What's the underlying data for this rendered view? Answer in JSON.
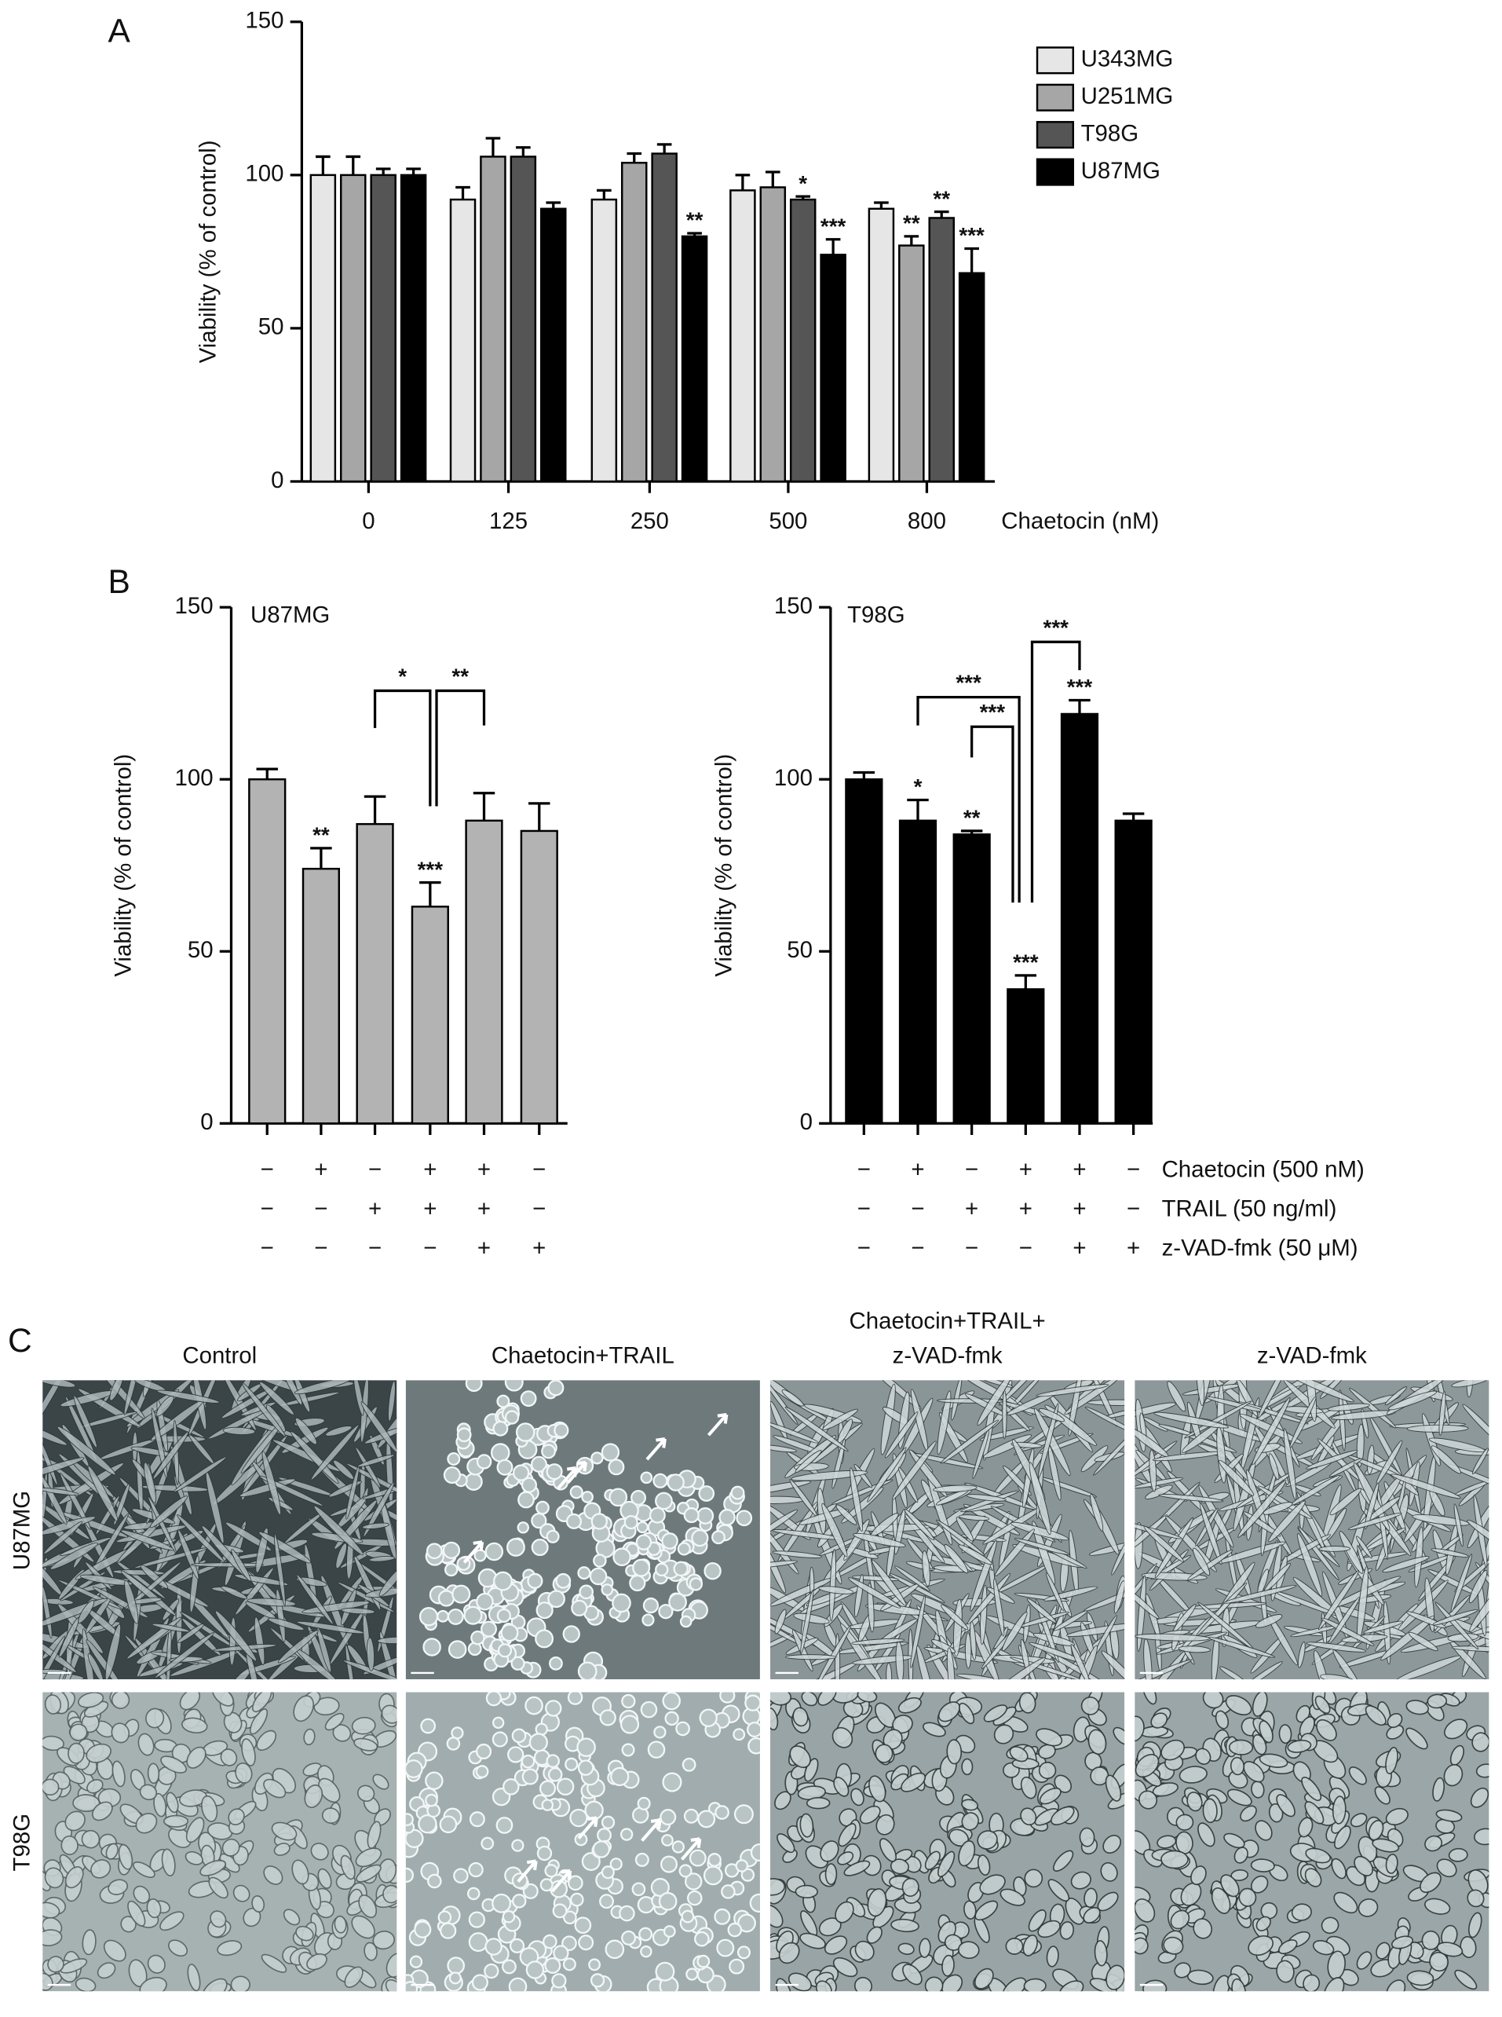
{
  "panel_labels": [
    "A",
    "B",
    "C"
  ],
  "chart_data": [
    {
      "type": "bar",
      "categories": [
        "0",
        "125",
        "250",
        "500",
        "800"
      ],
      "x_label": "Chaetocin (nM)",
      "y_label": "Viability (% of control)",
      "ylim": [
        0,
        150
      ],
      "yticks": [
        0,
        50,
        100,
        150
      ],
      "series": [
        {
          "name": "U343MG",
          "color": "#e6e6e6",
          "values": [
            100,
            92,
            92,
            95,
            89
          ],
          "errors": [
            6,
            4,
            3,
            5,
            2
          ],
          "annotations": [
            null,
            null,
            null,
            null,
            null
          ]
        },
        {
          "name": "U251MG",
          "color": "#a6a6a6",
          "values": [
            100,
            106,
            104,
            96,
            77
          ],
          "errors": [
            6,
            6,
            3,
            5,
            3
          ],
          "annotations": [
            null,
            null,
            null,
            null,
            "**"
          ]
        },
        {
          "name": "T98G",
          "color": "#555555",
          "values": [
            100,
            106,
            107,
            92,
            86
          ],
          "errors": [
            2,
            3,
            3,
            1,
            2
          ],
          "annotations": [
            null,
            null,
            null,
            "*",
            "**"
          ]
        },
        {
          "name": "U87MG",
          "color": "#000000",
          "values": [
            100,
            89,
            80,
            74,
            68
          ],
          "errors": [
            2,
            2,
            1,
            5,
            8
          ],
          "annotations": [
            null,
            null,
            "**",
            "***",
            "***"
          ]
        }
      ]
    },
    {
      "type": "bar",
      "title": "U87MG",
      "y_label": "Viability (% of control)",
      "ylim": [
        0,
        150
      ],
      "yticks": [
        0,
        50,
        100,
        150
      ],
      "color": "#b3b3b3",
      "values": [
        100,
        74,
        87,
        63,
        88,
        85
      ],
      "errors": [
        3,
        6,
        8,
        7,
        8,
        8
      ],
      "annotations": [
        null,
        "**",
        null,
        "***",
        null,
        null
      ],
      "comparisons": [
        "*",
        "**"
      ],
      "conditions": [
        {
          "signs": [
            "−",
            "+",
            "−",
            "+",
            "+",
            "−"
          ]
        },
        {
          "signs": [
            "−",
            "−",
            "+",
            "+",
            "+",
            "−"
          ]
        },
        {
          "signs": [
            "−",
            "−",
            "−",
            "−",
            "+",
            "+"
          ]
        }
      ]
    },
    {
      "type": "bar",
      "title": "T98G",
      "y_label": "Viability (% of control)",
      "ylim": [
        0,
        150
      ],
      "yticks": [
        0,
        50,
        100,
        150
      ],
      "color": "#000000",
      "values": [
        100,
        88,
        84,
        39,
        119,
        88
      ],
      "errors": [
        2,
        6,
        1,
        4,
        4,
        2
      ],
      "annotations": [
        null,
        "*",
        "**",
        "***",
        "***",
        null
      ],
      "comparisons": [
        "***",
        "***",
        "***"
      ],
      "conditions": [
        {
          "name": "Chaetocin (500 nM)",
          "signs": [
            "−",
            "+",
            "−",
            "+",
            "+",
            "−"
          ]
        },
        {
          "name": "TRAIL (50 ng/ml)",
          "signs": [
            "−",
            "−",
            "+",
            "+",
            "+",
            "−"
          ]
        },
        {
          "name": "z-VAD-fmk (50 μM)",
          "signs": [
            "−",
            "−",
            "−",
            "−",
            "+",
            "+"
          ]
        }
      ]
    }
  ],
  "panel_c": {
    "columns": [
      "Control",
      "Chaetocin+TRAIL",
      [
        "Chaetocin+TRAIL+",
        "z-VAD-fmk"
      ],
      "z-VAD-fmk"
    ],
    "rows": [
      "U87MG",
      "T98G"
    ]
  }
}
